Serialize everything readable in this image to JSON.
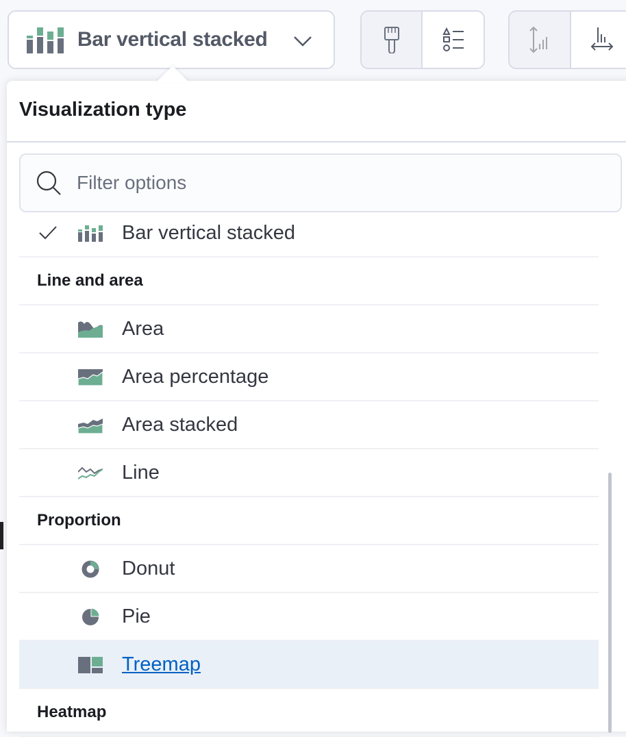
{
  "switcher": {
    "label": "Bar vertical stacked",
    "icon": "bar-vertical-stacked-icon"
  },
  "toolbar": {
    "groups": [
      [
        "paintbrush-icon",
        "legend-icon"
      ],
      [
        "left-axis-icon",
        "bottom-axis-icon"
      ]
    ]
  },
  "popover": {
    "title": "Visualization type",
    "search_placeholder": "Filter options"
  },
  "list": {
    "selected": {
      "label": "Bar vertical stacked"
    },
    "groups": [
      {
        "title": "Line and area",
        "items": [
          {
            "label": "Area"
          },
          {
            "label": "Area percentage"
          },
          {
            "label": "Area stacked"
          },
          {
            "label": "Line"
          }
        ]
      },
      {
        "title": "Proportion",
        "items": [
          {
            "label": "Donut"
          },
          {
            "label": "Pie"
          },
          {
            "label": "Treemap",
            "highlighted": true
          }
        ]
      },
      {
        "title": "Heatmap",
        "items": []
      }
    ]
  },
  "colors": {
    "gray": "#69707d",
    "green": "#6dae93",
    "highlight": "#e9f0f8",
    "link": "#0061c2"
  }
}
